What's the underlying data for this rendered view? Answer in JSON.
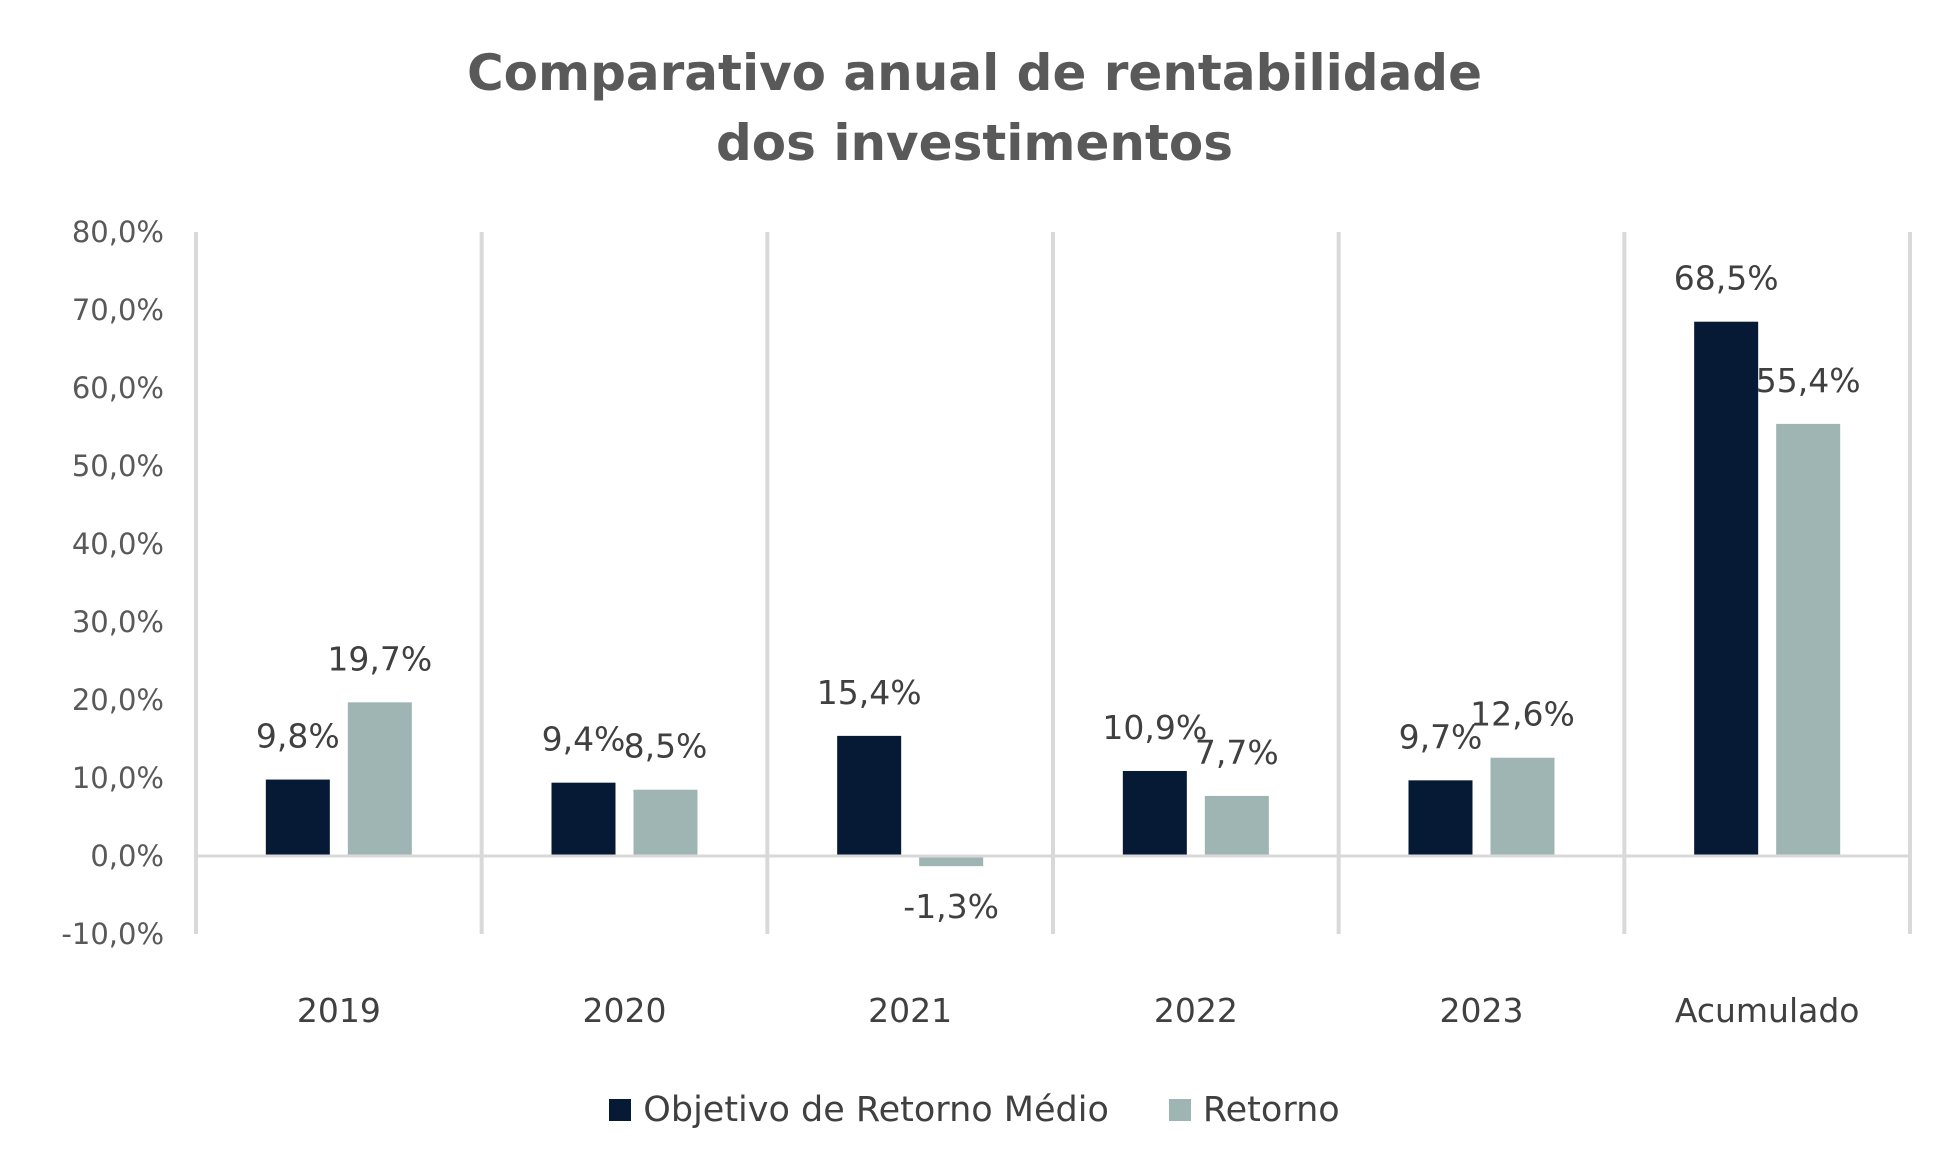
{
  "chart_data": {
    "type": "bar",
    "title_lines": [
      "Comparativo anual de rentabilidade",
      "dos investimentos"
    ],
    "categories": [
      "2019",
      "2020",
      "2021",
      "2022",
      "2023",
      "Acumulado"
    ],
    "series": [
      {
        "name": "Objetivo de Retorno Médio",
        "color": "#061a35",
        "values": [
          9.8,
          9.4,
          15.4,
          10.9,
          9.7,
          68.5
        ],
        "labels": [
          "9,8%",
          "9,4%",
          "15,4%",
          "10,9%",
          "9,7%",
          "68,5%"
        ]
      },
      {
        "name": "Retorno",
        "color": "#9fb5b4",
        "values": [
          19.7,
          8.5,
          -1.3,
          7.7,
          12.6,
          55.4
        ],
        "labels": [
          "19,7%",
          "8,5%",
          "-1,3%",
          "7,7%",
          "12,6%",
          "55,4%"
        ]
      }
    ],
    "ylim": [
      -10,
      80
    ],
    "yticks": [
      80,
      70,
      60,
      50,
      40,
      30,
      20,
      10,
      0,
      -10
    ],
    "ytick_labels": [
      "80,0%",
      "70,0%",
      "60,0%",
      "50,0%",
      "40,0%",
      "30,0%",
      "20,0%",
      "10,0%",
      "0,0%",
      "-10,0%"
    ],
    "category_separators": true,
    "legend_position": "bottom"
  }
}
